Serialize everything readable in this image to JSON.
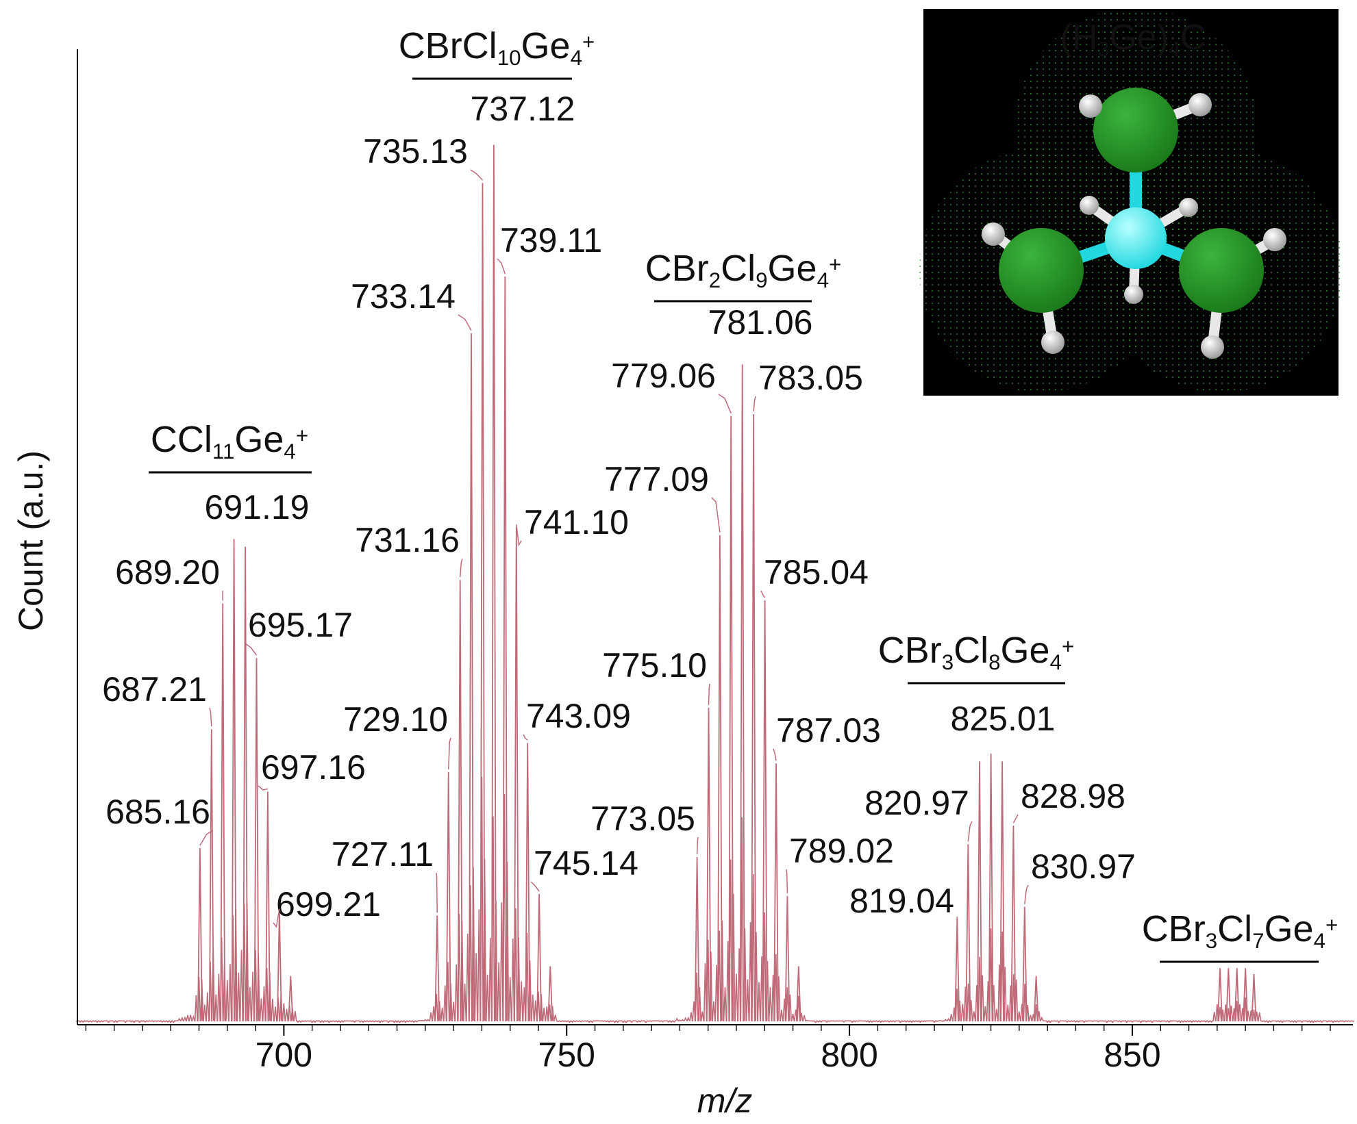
{
  "chart_data": {
    "type": "line",
    "xlabel": "m/z",
    "ylabel": "Count (a.u.)",
    "xlim": [
      663.5,
      889
    ],
    "ylim": [
      0,
      1
    ],
    "x_ticks": [
      700,
      750,
      800,
      850
    ],
    "grid": false,
    "line_color": "#c06a78",
    "peaks": [
      {
        "x": 685.16,
        "y": 0.181,
        "label": "685.16"
      },
      {
        "x": 687.21,
        "y": 0.303,
        "label": "687.21"
      },
      {
        "x": 689.2,
        "y": 0.432,
        "label": "689.20"
      },
      {
        "x": 691.19,
        "y": 0.498,
        "label": "691.19"
      },
      {
        "x": 693.18,
        "y": 0.49
      },
      {
        "x": 695.17,
        "y": 0.376,
        "label": "695.17"
      },
      {
        "x": 697.16,
        "y": 0.239,
        "label": "697.16"
      },
      {
        "x": 699.21,
        "y": 0.116,
        "label": "699.21"
      },
      {
        "x": 701.2,
        "y": 0.05
      },
      {
        "x": 727.11,
        "y": 0.112,
        "label": "727.11"
      },
      {
        "x": 729.1,
        "y": 0.259,
        "label": "729.10"
      },
      {
        "x": 731.16,
        "y": 0.456,
        "label": "731.16"
      },
      {
        "x": 733.14,
        "y": 0.709,
        "label": "733.14"
      },
      {
        "x": 735.13,
        "y": 0.863,
        "label": "735.13"
      },
      {
        "x": 737.12,
        "y": 0.902,
        "label": "737.12"
      },
      {
        "x": 739.11,
        "y": 0.767,
        "label": "739.11"
      },
      {
        "x": 741.1,
        "y": 0.51,
        "label": "741.10"
      },
      {
        "x": 743.09,
        "y": 0.289,
        "label": "743.09"
      },
      {
        "x": 745.14,
        "y": 0.134,
        "label": "745.14"
      },
      {
        "x": 747.1,
        "y": 0.06
      },
      {
        "x": 773.05,
        "y": 0.172,
        "label": "773.05"
      },
      {
        "x": 775.1,
        "y": 0.325,
        "label": "775.10"
      },
      {
        "x": 777.09,
        "y": 0.502,
        "label": "777.09"
      },
      {
        "x": 779.06,
        "y": 0.624,
        "label": "779.06"
      },
      {
        "x": 781.06,
        "y": 0.677,
        "label": "781.06"
      },
      {
        "x": 783.05,
        "y": 0.626,
        "label": "783.05"
      },
      {
        "x": 785.04,
        "y": 0.435,
        "label": "785.04"
      },
      {
        "x": 787.03,
        "y": 0.268,
        "label": "787.03"
      },
      {
        "x": 789.02,
        "y": 0.132,
        "label": "789.02"
      },
      {
        "x": 791.0,
        "y": 0.06
      },
      {
        "x": 819.04,
        "y": 0.108,
        "label": "819.04"
      },
      {
        "x": 820.97,
        "y": 0.185,
        "label": "820.97"
      },
      {
        "x": 823.0,
        "y": 0.27
      },
      {
        "x": 825.01,
        "y": 0.278,
        "label": "825.01"
      },
      {
        "x": 827.0,
        "y": 0.27
      },
      {
        "x": 828.98,
        "y": 0.204,
        "label": "828.98"
      },
      {
        "x": 830.97,
        "y": 0.121,
        "label": "830.97"
      },
      {
        "x": 833.0,
        "y": 0.05
      },
      {
        "x": 865.5,
        "y": 0.058
      },
      {
        "x": 867.0,
        "y": 0.058
      },
      {
        "x": 868.5,
        "y": 0.058
      },
      {
        "x": 870.0,
        "y": 0.058
      },
      {
        "x": 871.5,
        "y": 0.052
      }
    ],
    "groups": [
      {
        "formula": [
          [
            "CCl",
            ""
          ],
          [
            "11",
            "sub"
          ],
          [
            "Ge",
            ""
          ],
          [
            "4",
            "sub"
          ],
          [
            "+",
            "sup"
          ]
        ]
      },
      {
        "formula": [
          [
            "CBrCl",
            ""
          ],
          [
            "10",
            "sub"
          ],
          [
            "Ge",
            ""
          ],
          [
            "4",
            "sub"
          ],
          [
            "+",
            "sup"
          ]
        ]
      },
      {
        "formula": [
          [
            "CBr",
            ""
          ],
          [
            "2",
            "sub"
          ],
          [
            "Cl",
            ""
          ],
          [
            "9",
            "sub"
          ],
          [
            "Ge",
            ""
          ],
          [
            "4",
            "sub"
          ],
          [
            "+",
            "sup"
          ]
        ]
      },
      {
        "formula": [
          [
            "CBr",
            ""
          ],
          [
            "3",
            "sub"
          ],
          [
            "Cl",
            ""
          ],
          [
            "8",
            "sub"
          ],
          [
            "Ge",
            ""
          ],
          [
            "4",
            "sub"
          ],
          [
            "+",
            "sup"
          ]
        ]
      },
      {
        "formula": [
          [
            "CBr",
            ""
          ],
          [
            "3",
            "sub"
          ],
          [
            "Cl",
            ""
          ],
          [
            "7",
            "sub"
          ],
          [
            "Ge",
            ""
          ],
          [
            "4",
            "sub"
          ],
          [
            "+",
            "sup"
          ]
        ]
      }
    ]
  },
  "inset": {
    "formula": [
      [
        "(H",
        ""
      ],
      [
        "3",
        "sub"
      ],
      [
        "Ge)",
        ""
      ],
      [
        "4",
        "sub"
      ],
      [
        "C",
        ""
      ]
    ],
    "background": "#000000",
    "germanium_color": "#1a7a1a",
    "carbon_color": "#22d8e0",
    "hydrogen_color": "#e8e8e8"
  }
}
